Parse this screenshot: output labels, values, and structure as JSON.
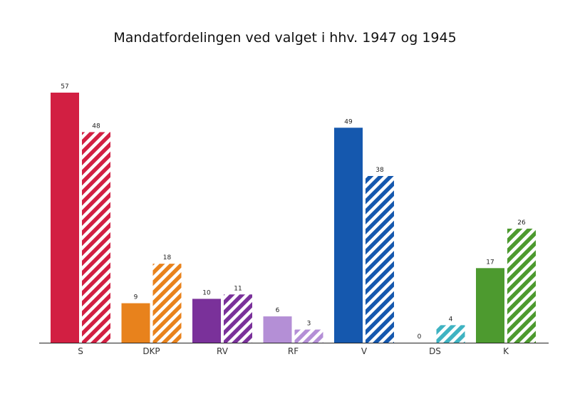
{
  "chart_data": {
    "type": "bar",
    "title": "Mandatfordelingen ved valget i hhv. 1947 og 1945",
    "xlabel": "",
    "ylabel": "",
    "ylim": [
      0,
      57
    ],
    "grid": false,
    "legend": "none",
    "categories": [
      "S",
      "DKP",
      "RV",
      "RF",
      "V",
      "DS",
      "K"
    ],
    "series": [
      {
        "values": [
          57,
          9,
          10,
          6,
          49,
          0,
          17
        ],
        "pattern": "solid"
      },
      {
        "values": [
          48,
          18,
          11,
          3,
          38,
          4,
          26
        ],
        "pattern": "striped"
      }
    ],
    "category_colors": [
      "#d21f42",
      "#e8821c",
      "#7a319a",
      "#b48fd6",
      "#1558ae",
      "#3fb3c2",
      "#4d9a2f"
    ]
  }
}
